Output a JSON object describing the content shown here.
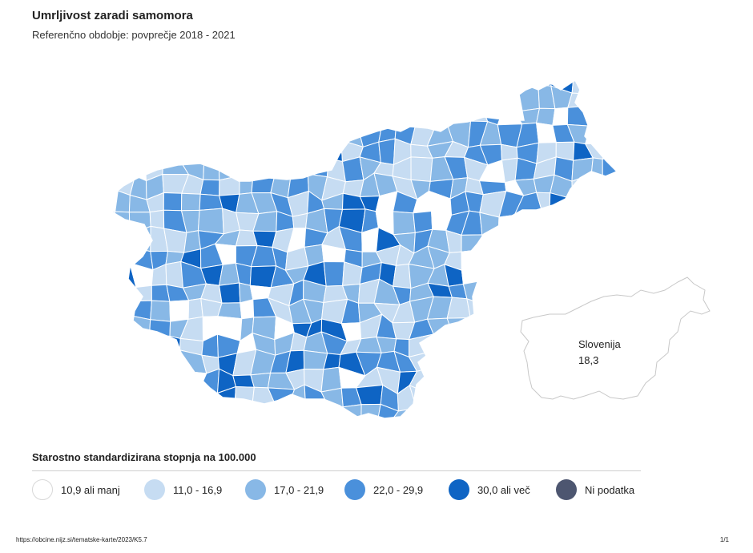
{
  "title": "Umrljivost zaradi samomora",
  "subtitle": "Referenčno obdobje: povprečje 2018 - 2021",
  "inset": {
    "name": "Slovenija",
    "value": "18,3"
  },
  "legend": {
    "title": "Starostno standardizirana stopnja na 100.000",
    "items": [
      {
        "label": "10,9 ali manj",
        "color": "#ffffff"
      },
      {
        "label": "11,0 - 16,9",
        "color": "#c6dcf2"
      },
      {
        "label": "17,0 - 21,9",
        "color": "#88b8e6"
      },
      {
        "label": "22,0 - 29,9",
        "color": "#4a90db"
      },
      {
        "label": "30,0 ali več",
        "color": "#0e64c4"
      },
      {
        "label": "Ni podatka",
        "color": "#4d5670"
      }
    ]
  },
  "footer": {
    "url": "https://obcine.nijz.si/tematske-karte/2023/K5.7",
    "page": "1/1"
  }
}
